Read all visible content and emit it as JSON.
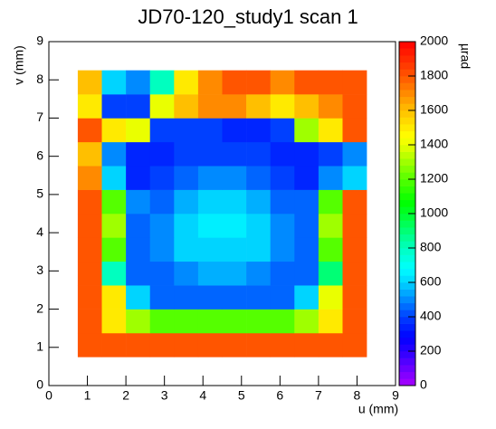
{
  "chart_data": {
    "type": "heatmap",
    "title": "JD70-120_study1 scan 1",
    "x_label": "u (mm)",
    "y_label": "v (mm)",
    "z_label": "µrad",
    "xlim": [
      0,
      9
    ],
    "xticks": [
      0,
      1,
      2,
      3,
      4,
      5,
      6,
      7,
      8,
      9
    ],
    "ylim": [
      0,
      9
    ],
    "yticks": [
      0,
      1,
      2,
      3,
      4,
      5,
      6,
      7,
      8,
      9
    ],
    "zlim": [
      0,
      2000
    ],
    "zticks": [
      0,
      200,
      400,
      600,
      800,
      1000,
      1200,
      1400,
      1600,
      1800,
      2000
    ],
    "colormap": "rainbow",
    "xbins": [
      0.75,
      1.375,
      2,
      2.625,
      3.25,
      3.875,
      4.5,
      5.125,
      5.75,
      6.375,
      7,
      7.625,
      8.25
    ],
    "ybins": [
      0.75,
      1.375,
      2,
      2.625,
      3.25,
      3.875,
      4.5,
      5.125,
      5.75,
      6.375,
      7,
      7.625,
      8.25
    ],
    "z": [
      [
        1800,
        1800,
        1800,
        1800,
        1800,
        1800,
        1800,
        1800,
        1800,
        1800,
        1800,
        1800
      ],
      [
        1800,
        1500,
        1300,
        1200,
        1200,
        1200,
        1200,
        1200,
        1200,
        1300,
        1500,
        1800
      ],
      [
        1800,
        1500,
        600,
        450,
        450,
        450,
        450,
        450,
        450,
        600,
        1400,
        1800
      ],
      [
        1800,
        800,
        450,
        450,
        500,
        550,
        550,
        500,
        450,
        450,
        900,
        1800
      ],
      [
        1800,
        1200,
        450,
        500,
        600,
        600,
        600,
        600,
        500,
        450,
        1200,
        1800
      ],
      [
        1800,
        1300,
        450,
        500,
        600,
        650,
        650,
        600,
        500,
        450,
        1300,
        1800
      ],
      [
        1800,
        1200,
        500,
        450,
        550,
        600,
        600,
        550,
        450,
        450,
        1200,
        1800
      ],
      [
        1700,
        600,
        350,
        400,
        450,
        500,
        500,
        450,
        400,
        350,
        500,
        600
      ],
      [
        1600,
        500,
        350,
        350,
        400,
        400,
        400,
        400,
        350,
        350,
        400,
        500
      ],
      [
        1800,
        1500,
        1400,
        400,
        400,
        400,
        350,
        350,
        400,
        1300,
        1500,
        1800
      ],
      [
        1500,
        400,
        400,
        1400,
        1600,
        1700,
        1700,
        1600,
        1500,
        1600,
        1700,
        1800
      ],
      [
        1600,
        600,
        500,
        800,
        1500,
        1700,
        1800,
        1800,
        1700,
        1800,
        1800,
        1800
      ]
    ]
  }
}
